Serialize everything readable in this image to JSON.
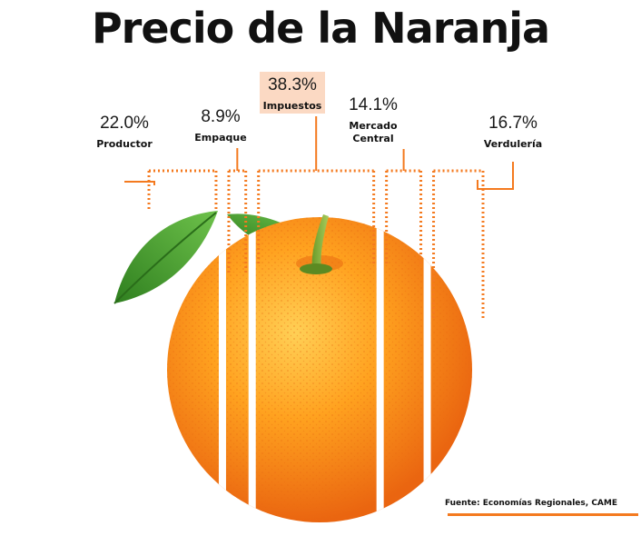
{
  "chart_data": {
    "type": "pie",
    "title": "Precio de la Naranja",
    "categories": [
      "Productor",
      "Empaque",
      "Impuestos",
      "Mercado Central",
      "Verdulería"
    ],
    "values": [
      22.0,
      8.9,
      38.3,
      14.1,
      16.7
    ],
    "value_labels": [
      "22.0%",
      "8.9%",
      "38.3%",
      "14.1%",
      "16.7%"
    ],
    "label_lines": [
      [
        "Productor"
      ],
      [
        "Empaque"
      ],
      [
        "Impuestos"
      ],
      [
        "Mercado",
        "Central"
      ],
      [
        "Verdulería"
      ]
    ],
    "highlight_index": 2,
    "source": "Fuente: Economías Regionales, CAME"
  },
  "colors": {
    "accent": "#f47a1f",
    "highlight_bg": "#fbd9c3",
    "orange_light": "#ffb233",
    "orange_dark": "#ec6a12",
    "leaf": "#3f9a2b"
  }
}
